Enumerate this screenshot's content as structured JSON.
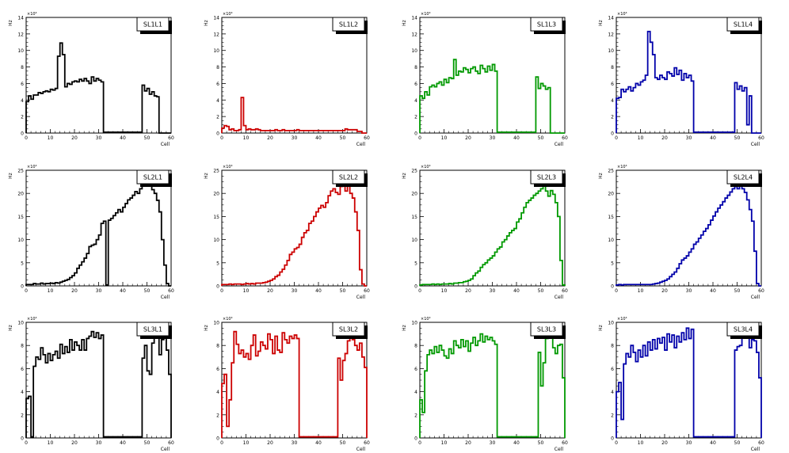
{
  "chart_data": [
    {
      "type": "bar",
      "title": "SL1L1",
      "xlabel": "Cell",
      "ylabel": "Hz",
      "exponent_label": "×10³",
      "xlim": [
        0,
        60
      ],
      "ylim": [
        0,
        14
      ],
      "xticks": [
        0,
        10,
        20,
        30,
        40,
        50,
        60
      ],
      "yticks": [
        0,
        2,
        4,
        6,
        8,
        10,
        12,
        14
      ],
      "color": "#000000",
      "values": [
        3.8,
        4.5,
        4.1,
        4.6,
        4.6,
        4.9,
        4.8,
        5.0,
        5.1,
        5.0,
        5.3,
        5.2,
        5.4,
        9.3,
        10.9,
        9.5,
        5.6,
        6.0,
        5.9,
        6.2,
        6.3,
        6.2,
        6.5,
        6.3,
        6.6,
        6.3,
        6.0,
        6.8,
        6.3,
        6.6,
        6.4,
        6.2,
        0.1,
        0.1,
        0.1,
        0.1,
        0.1,
        0.1,
        0.1,
        0.1,
        0.1,
        0.1,
        0.1,
        0.1,
        0.1,
        0.1,
        0.1,
        0.1,
        5.8,
        5.1,
        5.4,
        4.7,
        5.0,
        4.5,
        4.4,
        0,
        0,
        0,
        0,
        0
      ]
    },
    {
      "type": "bar",
      "title": "SL1L2",
      "xlabel": "Cell",
      "ylabel": "Hz",
      "exponent_label": "×10³",
      "xlim": [
        0,
        60
      ],
      "ylim": [
        0,
        14
      ],
      "xticks": [
        0,
        10,
        20,
        30,
        40,
        50,
        60
      ],
      "yticks": [
        0,
        2,
        4,
        6,
        8,
        10,
        12,
        14
      ],
      "color": "#cc0000",
      "values": [
        0.6,
        0.9,
        0.8,
        0.4,
        0.5,
        0.3,
        0.3,
        0.4,
        4.3,
        0.9,
        0.4,
        0.5,
        0.4,
        0.4,
        0.5,
        0.4,
        0.3,
        0.3,
        0.3,
        0.3,
        0.3,
        0.3,
        0.4,
        0.3,
        0.3,
        0.4,
        0.3,
        0.3,
        0.3,
        0.3,
        0.3,
        0.4,
        0.3,
        0.3,
        0.3,
        0.3,
        0.3,
        0.3,
        0.3,
        0.3,
        0.3,
        0.3,
        0.3,
        0.3,
        0.3,
        0.3,
        0.3,
        0.3,
        0.3,
        0.3,
        0.3,
        0.5,
        0.4,
        0.4,
        0.4,
        0.4,
        0.2,
        0.2,
        0,
        0
      ]
    },
    {
      "type": "bar",
      "title": "SL1L3",
      "xlabel": "Cell",
      "ylabel": "Hz",
      "exponent_label": "×10³",
      "xlim": [
        0,
        60
      ],
      "ylim": [
        0,
        14
      ],
      "xticks": [
        0,
        10,
        20,
        30,
        40,
        50,
        60
      ],
      "yticks": [
        0,
        2,
        4,
        6,
        8,
        10,
        12,
        14
      ],
      "color": "#009900",
      "values": [
        4.5,
        4.2,
        5.0,
        4.6,
        5.6,
        5.8,
        5.6,
        6.0,
        6.2,
        5.8,
        6.5,
        6.1,
        6.7,
        6.6,
        8.9,
        7.0,
        7.5,
        7.4,
        7.9,
        7.7,
        7.3,
        7.8,
        8.0,
        7.5,
        7.2,
        8.2,
        7.8,
        7.4,
        8.1,
        7.6,
        8.3,
        7.5,
        0.1,
        0.1,
        0.1,
        0.1,
        0.1,
        0.1,
        0.1,
        0.1,
        0.1,
        0.1,
        0.1,
        0.1,
        0.1,
        0.1,
        0.1,
        0.1,
        6.8,
        5.4,
        6.0,
        5.7,
        5.3,
        5.5,
        0,
        0,
        0,
        0,
        0,
        0
      ]
    },
    {
      "type": "bar",
      "title": "SL1L4",
      "xlabel": "Cell",
      "ylabel": "Hz",
      "exponent_label": "×10³",
      "xlim": [
        0,
        60
      ],
      "ylim": [
        0,
        14
      ],
      "xticks": [
        0,
        10,
        20,
        30,
        40,
        50,
        60
      ],
      "yticks": [
        0,
        2,
        4,
        6,
        8,
        10,
        12,
        14
      ],
      "color": "#0000aa",
      "values": [
        4.2,
        4.3,
        5.3,
        5.0,
        5.3,
        5.6,
        5.1,
        5.5,
        6.0,
        5.8,
        6.2,
        6.4,
        7.0,
        12.3,
        11.0,
        9.5,
        6.7,
        6.5,
        7.0,
        6.7,
        6.5,
        7.4,
        7.2,
        6.9,
        7.9,
        7.1,
        7.6,
        6.4,
        7.2,
        6.7,
        7.0,
        6.3,
        0.1,
        0.1,
        0.1,
        0.1,
        0.1,
        0.1,
        0.1,
        0.1,
        0.1,
        0.1,
        0.1,
        0.1,
        0.1,
        0.1,
        0.1,
        0.1,
        0.1,
        6.1,
        5.3,
        5.7,
        5.1,
        5.5,
        1.0,
        4.5,
        0,
        0,
        0,
        0
      ]
    },
    {
      "type": "bar",
      "title": "SL2L1",
      "xlabel": "Cell",
      "ylabel": "Hz",
      "exponent_label": "×10³",
      "xlim": [
        0,
        60
      ],
      "ylim": [
        0,
        25
      ],
      "xticks": [
        0,
        10,
        20,
        30,
        40,
        50,
        60
      ],
      "yticks": [
        0,
        5,
        10,
        15,
        20,
        25
      ],
      "color": "#000000",
      "values": [
        0.3,
        0.3,
        0.3,
        0.5,
        0.4,
        0.4,
        0.6,
        0.4,
        0.5,
        0.5,
        0.6,
        0.5,
        0.7,
        0.6,
        0.8,
        1.0,
        1.2,
        1.4,
        1.8,
        2.2,
        2.8,
        3.8,
        4.5,
        5.2,
        6.0,
        7.0,
        8.5,
        8.8,
        9.0,
        10.0,
        11.0,
        13.5,
        14.0,
        0.2,
        14.2,
        14.6,
        15.2,
        15.8,
        16.5,
        16.0,
        17.0,
        17.8,
        18.6,
        19.0,
        19.6,
        20.4,
        20.0,
        21.0,
        21.6,
        22.1,
        22.5,
        21.7,
        20.8,
        20.0,
        18.5,
        16.0,
        10.0,
        4.5,
        0.5,
        0
      ]
    },
    {
      "type": "bar",
      "title": "SL2L2",
      "xlabel": "Cell",
      "ylabel": "Hz",
      "exponent_label": "×10³",
      "xlim": [
        0,
        60
      ],
      "ylim": [
        0,
        25
      ],
      "xticks": [
        0,
        10,
        20,
        30,
        40,
        50,
        60
      ],
      "yticks": [
        0,
        5,
        10,
        15,
        20,
        25
      ],
      "color": "#cc0000",
      "values": [
        0.3,
        0.3,
        0.3,
        0.4,
        0.3,
        0.4,
        0.4,
        0.4,
        0.3,
        0.4,
        0.5,
        0.4,
        0.5,
        0.4,
        0.6,
        0.6,
        0.6,
        0.7,
        0.8,
        1.0,
        1.2,
        1.5,
        2.0,
        2.3,
        3.0,
        3.6,
        4.5,
        5.5,
        6.8,
        7.3,
        8.0,
        8.3,
        9.0,
        10.5,
        11.5,
        12.0,
        13.5,
        14.0,
        15.0,
        16.0,
        16.8,
        17.4,
        17.0,
        18.0,
        19.5,
        20.5,
        21.0,
        20.2,
        19.8,
        21.5,
        22.0,
        20.5,
        21.8,
        20.0,
        19.0,
        16.0,
        12.0,
        3.5,
        0.4,
        0
      ]
    },
    {
      "type": "bar",
      "title": "SL2L3",
      "xlabel": "Cell",
      "ylabel": "Hz",
      "exponent_label": "×10³",
      "xlim": [
        0,
        60
      ],
      "ylim": [
        0,
        25
      ],
      "xticks": [
        0,
        10,
        20,
        30,
        40,
        50,
        60
      ],
      "yticks": [
        0,
        5,
        10,
        15,
        20,
        25
      ],
      "color": "#009900",
      "values": [
        0.2,
        0.3,
        0.3,
        0.3,
        0.3,
        0.4,
        0.3,
        0.4,
        0.3,
        0.4,
        0.4,
        0.4,
        0.5,
        0.4,
        0.6,
        0.6,
        0.7,
        0.7,
        0.9,
        1.0,
        1.2,
        1.5,
        2.2,
        2.8,
        3.2,
        4.0,
        4.6,
        5.0,
        5.6,
        6.0,
        6.5,
        7.3,
        8.0,
        8.4,
        9.5,
        10.0,
        10.8,
        11.5,
        12.0,
        12.4,
        13.8,
        14.5,
        15.8,
        17.0,
        18.0,
        18.5,
        19.0,
        19.6,
        20.0,
        20.5,
        21.0,
        21.8,
        20.5,
        19.4,
        20.6,
        19.8,
        18.0,
        15.0,
        5.5,
        0.2
      ]
    },
    {
      "type": "bar",
      "title": "SL2L4",
      "xlabel": "Cell",
      "ylabel": "Hz",
      "exponent_label": "×10³",
      "xlim": [
        0,
        60
      ],
      "ylim": [
        0,
        25
      ],
      "xticks": [
        0,
        10,
        20,
        30,
        40,
        50,
        60
      ],
      "yticks": [
        0,
        5,
        10,
        15,
        20,
        25
      ],
      "color": "#0000aa",
      "values": [
        0.2,
        0.3,
        0.2,
        0.3,
        0.3,
        0.3,
        0.3,
        0.3,
        0.3,
        0.3,
        0.3,
        0.3,
        0.3,
        0.3,
        0.3,
        0.4,
        0.5,
        0.6,
        0.8,
        1.0,
        1.2,
        1.5,
        2.0,
        2.5,
        3.0,
        3.8,
        4.8,
        5.6,
        6.0,
        6.5,
        7.3,
        8.0,
        9.0,
        9.5,
        10.3,
        11.0,
        11.8,
        12.4,
        13.2,
        14.2,
        15.1,
        16.0,
        16.8,
        17.5,
        18.2,
        19.0,
        19.6,
        20.3,
        21.0,
        21.5,
        21.0,
        22.0,
        21.0,
        20.2,
        18.6,
        16.5,
        14.0,
        7.5,
        0.5,
        0
      ]
    },
    {
      "type": "bar",
      "title": "SL3L1",
      "xlabel": "Cell",
      "ylabel": "Hz",
      "exponent_label": "×10³",
      "xlim": [
        0,
        60
      ],
      "ylim": [
        0,
        10
      ],
      "xticks": [
        0,
        10,
        20,
        30,
        40,
        50,
        60
      ],
      "yticks": [
        0,
        2,
        4,
        6,
        8,
        10
      ],
      "color": "#000000",
      "values": [
        3.4,
        3.6,
        0.1,
        6.2,
        7.0,
        6.8,
        7.8,
        7.2,
        6.5,
        7.3,
        6.7,
        7.2,
        7.5,
        6.9,
        8.1,
        7.3,
        7.9,
        7.4,
        8.5,
        7.6,
        8.3,
        8.0,
        7.6,
        8.5,
        7.6,
        8.6,
        8.8,
        9.2,
        8.7,
        9.1,
        8.6,
        8.9,
        0.1,
        0.1,
        0.1,
        0.1,
        0.1,
        0.1,
        0.1,
        0.1,
        0.1,
        0.1,
        0.1,
        0.1,
        0.1,
        0.1,
        0.1,
        0.1,
        6.9,
        8.0,
        5.8,
        5.5,
        8.2,
        9.2,
        8.8,
        7.2,
        8.5,
        9.0,
        7.6,
        5.5
      ]
    },
    {
      "type": "bar",
      "title": "SL3L2",
      "xlabel": "Cell",
      "ylabel": "Hz",
      "exponent_label": "×10³",
      "xlim": [
        0,
        60
      ],
      "ylim": [
        0,
        10
      ],
      "xticks": [
        0,
        10,
        20,
        30,
        40,
        50,
        60
      ],
      "yticks": [
        0,
        2,
        4,
        6,
        8,
        10
      ],
      "color": "#cc0000",
      "values": [
        4.7,
        5.5,
        1.0,
        3.3,
        6.5,
        9.2,
        8.1,
        7.3,
        7.6,
        7.0,
        7.3,
        6.8,
        8.0,
        8.9,
        7.1,
        7.5,
        8.3,
        8.0,
        7.7,
        9.0,
        8.5,
        7.3,
        8.8,
        7.6,
        7.4,
        9.1,
        8.5,
        8.2,
        8.8,
        8.6,
        8.9,
        8.6,
        0.1,
        0.1,
        0.1,
        0.1,
        0.1,
        0.1,
        0.1,
        0.1,
        0.1,
        0.1,
        0.1,
        0.1,
        0.1,
        0.1,
        0.1,
        0.1,
        6.9,
        5.0,
        6.7,
        7.3,
        8.4,
        8.8,
        8.5,
        8.0,
        7.6,
        8.2,
        7.0,
        6.1
      ]
    },
    {
      "type": "bar",
      "title": "SL3L3",
      "xlabel": "Cell",
      "ylabel": "Hz",
      "exponent_label": "×10³",
      "xlim": [
        0,
        60
      ],
      "ylim": [
        0,
        10
      ],
      "xticks": [
        0,
        10,
        20,
        30,
        40,
        50,
        60
      ],
      "yticks": [
        0,
        2,
        4,
        6,
        8,
        10
      ],
      "color": "#009900",
      "values": [
        3.3,
        2.2,
        5.8,
        7.2,
        7.6,
        7.3,
        7.9,
        7.4,
        8.0,
        7.6,
        7.1,
        6.9,
        7.7,
        7.3,
        8.4,
        8.0,
        7.8,
        8.5,
        7.9,
        8.4,
        7.5,
        8.2,
        8.7,
        8.0,
        8.4,
        9.0,
        8.3,
        8.8,
        8.5,
        8.7,
        8.4,
        8.1,
        0.1,
        0.1,
        0.1,
        0.1,
        0.1,
        0.1,
        0.1,
        0.1,
        0.1,
        0.1,
        0.1,
        0.1,
        0.1,
        0.1,
        0.1,
        0.1,
        0.1,
        7.4,
        4.5,
        6.5,
        8.6,
        8.9,
        9.1,
        7.8,
        7.3,
        8.0,
        8.1,
        5.2
      ]
    },
    {
      "type": "bar",
      "title": "SL3L4",
      "xlabel": "Cell",
      "ylabel": "Hz",
      "exponent_label": "×10³",
      "xlim": [
        0,
        60
      ],
      "ylim": [
        0,
        10
      ],
      "xticks": [
        0,
        10,
        20,
        30,
        40,
        50,
        60
      ],
      "yticks": [
        0,
        2,
        4,
        6,
        8,
        10
      ],
      "color": "#0000aa",
      "values": [
        4.0,
        4.8,
        1.6,
        6.4,
        7.3,
        7.0,
        8.0,
        7.4,
        6.6,
        7.6,
        7.0,
        8.0,
        7.1,
        8.3,
        7.6,
        8.5,
        7.7,
        8.6,
        8.2,
        8.7,
        7.6,
        9.0,
        8.3,
        8.9,
        7.8,
        8.8,
        8.3,
        9.1,
        8.5,
        9.5,
        8.6,
        9.4,
        0.1,
        0.1,
        0.1,
        0.1,
        0.1,
        0.1,
        0.1,
        0.1,
        0.1,
        0.1,
        0.1,
        0.1,
        0.1,
        0.1,
        0.1,
        0.1,
        0.1,
        7.6,
        7.9,
        8.0,
        9.1,
        9.6,
        8.8,
        7.8,
        8.5,
        8.4,
        7.4,
        5.2
      ]
    }
  ]
}
